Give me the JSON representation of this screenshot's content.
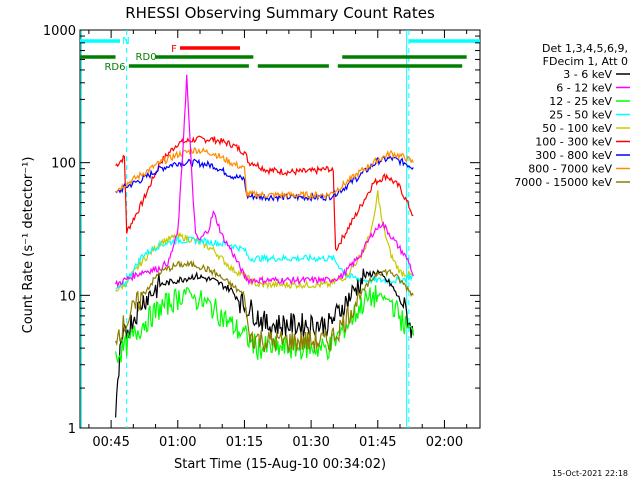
{
  "chart_data": {
    "type": "line",
    "title": "RHESSI Observing Summary Count Rates",
    "xlabel": "Start Time (15-Aug-10 00:34:02)",
    "ylabel": "Count Rate (s⁻¹ detector⁻¹)",
    "y_scale": "log",
    "ylim": [
      1,
      1000
    ],
    "xlim": [
      38,
      128
    ],
    "x_ticks": [
      {
        "v": 45,
        "label": "00:45"
      },
      {
        "v": 60,
        "label": "01:00"
      },
      {
        "v": 75,
        "label": "01:15"
      },
      {
        "v": 90,
        "label": "01:30"
      },
      {
        "v": 105,
        "label": "01:45"
      },
      {
        "v": 120,
        "label": "02:00"
      }
    ],
    "y_ticks": [
      {
        "v": 1,
        "label": "1"
      },
      {
        "v": 10,
        "label": "10"
      },
      {
        "v": 100,
        "label": "100"
      },
      {
        "v": 1000,
        "label": "1000"
      }
    ],
    "legend": {
      "placement": "top-right",
      "header": [
        "Det 1,3,4,5,6,9,",
        "FDecim 1, Att 0"
      ],
      "entries": [
        {
          "name": "3 - 6 keV",
          "color": "#000000"
        },
        {
          "name": "6 - 12 keV",
          "color": "#ff00ff"
        },
        {
          "name": "12 - 25 keV",
          "color": "#00ff00"
        },
        {
          "name": "25 - 50 keV",
          "color": "#00ffff"
        },
        {
          "name": "50 - 100 keV",
          "color": "#c8c800"
        },
        {
          "name": "100 - 300 keV",
          "color": "#ff0000"
        },
        {
          "name": "300 - 800 keV",
          "color": "#0000ff"
        },
        {
          "name": "800 - 7000 keV",
          "color": "#ff8c00"
        },
        {
          "name": "7000 - 15000 keV",
          "color": "#8b7d00"
        }
      ]
    },
    "night_boundaries": [
      {
        "start": 38,
        "end": 48.5
      },
      {
        "start": 112,
        "end": 128
      }
    ],
    "annotations": [
      {
        "label": "N",
        "color": "#00ffff"
      },
      {
        "label": "F",
        "color": "#ff0000"
      },
      {
        "label": "RD0",
        "color": "#008000"
      },
      {
        "label": "RD6",
        "color": "#008000"
      }
    ],
    "bars": {
      "N": [
        {
          "start": 38,
          "end": 47
        },
        {
          "start": 112,
          "end": 128
        }
      ],
      "F": [
        {
          "start": 60.5,
          "end": 74
        }
      ],
      "RD0": [
        {
          "start": 38,
          "end": 46
        },
        {
          "start": 55,
          "end": 77
        },
        {
          "start": 97,
          "end": 125
        }
      ],
      "RD6": [
        {
          "start": 49,
          "end": 76
        },
        {
          "start": 78,
          "end": 94
        },
        {
          "start": 96,
          "end": 124
        }
      ]
    },
    "series": [
      {
        "name": "100 - 300 keV",
        "color": "#ff0000",
        "points": [
          [
            46,
            95
          ],
          [
            48,
            110
          ],
          [
            48.5,
            30
          ],
          [
            52,
            50
          ],
          [
            56,
            100
          ],
          [
            60,
            140
          ],
          [
            64,
            150
          ],
          [
            68,
            150
          ],
          [
            72,
            138
          ],
          [
            75,
            120
          ],
          [
            76,
            100
          ],
          [
            77,
            100
          ],
          [
            80,
            88
          ],
          [
            85,
            85
          ],
          [
            90,
            86
          ],
          [
            94,
            90
          ],
          [
            95,
            85
          ],
          [
            95.5,
            22
          ],
          [
            100,
            40
          ],
          [
            104,
            70
          ],
          [
            107,
            80
          ],
          [
            110,
            65
          ],
          [
            113,
            40
          ]
        ]
      },
      {
        "name": "300 - 800 keV",
        "color": "#0000ff",
        "points": [
          [
            46,
            58
          ],
          [
            48,
            65
          ],
          [
            52,
            75
          ],
          [
            56,
            90
          ],
          [
            60,
            100
          ],
          [
            64,
            100
          ],
          [
            68,
            95
          ],
          [
            72,
            80
          ],
          [
            75,
            75
          ],
          [
            75.5,
            56
          ],
          [
            80,
            55
          ],
          [
            90,
            55
          ],
          [
            94,
            55
          ],
          [
            97,
            63
          ],
          [
            101,
            80
          ],
          [
            105,
            103
          ],
          [
            108,
            108
          ],
          [
            111,
            100
          ],
          [
            113,
            92
          ]
        ]
      },
      {
        "name": "800 - 7000 keV",
        "color": "#ff8c00",
        "points": [
          [
            46,
            62
          ],
          [
            48,
            68
          ],
          [
            52,
            82
          ],
          [
            56,
            100
          ],
          [
            60,
            115
          ],
          [
            64,
            125
          ],
          [
            68,
            118
          ],
          [
            72,
            100
          ],
          [
            75,
            90
          ],
          [
            75.5,
            58
          ],
          [
            80,
            57
          ],
          [
            90,
            57
          ],
          [
            94,
            57
          ],
          [
            97,
            67
          ],
          [
            101,
            85
          ],
          [
            105,
            105
          ],
          [
            108,
            118
          ],
          [
            111,
            110
          ],
          [
            113,
            100
          ]
        ]
      },
      {
        "name": "50 - 100 keV",
        "color": "#c8c800",
        "points": [
          [
            46,
            11
          ],
          [
            48,
            12
          ],
          [
            52,
            18
          ],
          [
            56,
            25
          ],
          [
            60,
            28
          ],
          [
            64,
            26
          ],
          [
            68,
            22
          ],
          [
            72,
            16
          ],
          [
            75,
            14
          ],
          [
            78,
            12
          ],
          [
            85,
            12
          ],
          [
            90,
            12
          ],
          [
            94,
            12
          ],
          [
            98,
            14
          ],
          [
            102,
            22
          ],
          [
            104,
            35
          ],
          [
            105,
            60
          ],
          [
            106,
            35
          ],
          [
            108,
            20
          ],
          [
            110,
            15
          ],
          [
            113,
            14
          ]
        ]
      },
      {
        "name": "25 - 50 keV",
        "color": "#00ffff",
        "points": [
          [
            46,
            11
          ],
          [
            48,
            12
          ],
          [
            52,
            20
          ],
          [
            56,
            24
          ],
          [
            60,
            26
          ],
          [
            64,
            26
          ],
          [
            68,
            25
          ],
          [
            72,
            24
          ],
          [
            75,
            22
          ],
          [
            76,
            19
          ],
          [
            85,
            19
          ],
          [
            94,
            19
          ],
          [
            95,
            19
          ],
          [
            98,
            14
          ],
          [
            102,
            13
          ],
          [
            106,
            13
          ],
          [
            110,
            13
          ],
          [
            113,
            14
          ]
        ]
      },
      {
        "name": "6 - 12 keV",
        "color": "#ff00ff",
        "points": [
          [
            46,
            12
          ],
          [
            48,
            13
          ],
          [
            52,
            15
          ],
          [
            56,
            16
          ],
          [
            58,
            18
          ],
          [
            60,
            30
          ],
          [
            61,
            100
          ],
          [
            62,
            450
          ],
          [
            63,
            100
          ],
          [
            64,
            28
          ],
          [
            65,
            26
          ],
          [
            67,
            32
          ],
          [
            68,
            42
          ],
          [
            69,
            35
          ],
          [
            70,
            28
          ],
          [
            72,
            22
          ],
          [
            75,
            14
          ],
          [
            76,
            13
          ],
          [
            85,
            13
          ],
          [
            94,
            13
          ],
          [
            97,
            14
          ],
          [
            101,
            20
          ],
          [
            104,
            30
          ],
          [
            106,
            35
          ],
          [
            109,
            25
          ],
          [
            112,
            18
          ],
          [
            113,
            14
          ]
        ]
      },
      {
        "name": "3 - 6 keV",
        "color": "#000000",
        "points": [
          [
            46,
            1.2
          ],
          [
            46.5,
            2
          ],
          [
            47,
            3.5
          ],
          [
            48,
            5
          ],
          [
            52,
            9
          ],
          [
            56,
            12
          ],
          [
            60,
            13
          ],
          [
            64,
            14
          ],
          [
            68,
            13
          ],
          [
            72,
            11
          ],
          [
            74,
            9
          ],
          [
            76,
            8
          ],
          [
            80,
            6
          ],
          [
            90,
            6
          ],
          [
            94,
            6
          ],
          [
            98,
            9
          ],
          [
            102,
            14
          ],
          [
            105,
            15
          ],
          [
            108,
            12
          ],
          [
            111,
            8
          ],
          [
            113,
            5
          ]
        ]
      },
      {
        "name": "12 - 25 keV",
        "color": "#00ff00",
        "points": [
          [
            46,
            3.5
          ],
          [
            48,
            4
          ],
          [
            52,
            6
          ],
          [
            56,
            8
          ],
          [
            60,
            9.5
          ],
          [
            62,
            11
          ],
          [
            64,
            9.5
          ],
          [
            68,
            8
          ],
          [
            72,
            6
          ],
          [
            75,
            5
          ],
          [
            78,
            4
          ],
          [
            85,
            4
          ],
          [
            90,
            4
          ],
          [
            94,
            4
          ],
          [
            98,
            6
          ],
          [
            102,
            9
          ],
          [
            105,
            10
          ],
          [
            108,
            9
          ],
          [
            111,
            6
          ],
          [
            113,
            5
          ]
        ]
      },
      {
        "name": "7000 - 15000 keV",
        "color": "#8b7d00",
        "points": [
          [
            46,
            5
          ],
          [
            48,
            6
          ],
          [
            52,
            10
          ],
          [
            56,
            15
          ],
          [
            60,
            17
          ],
          [
            64,
            17
          ],
          [
            68,
            15
          ],
          [
            72,
            12
          ],
          [
            75,
            10
          ],
          [
            76,
            5
          ],
          [
            80,
            4.5
          ],
          [
            90,
            4.5
          ],
          [
            94,
            4.5
          ],
          [
            97,
            6
          ],
          [
            101,
            10
          ],
          [
            105,
            15
          ],
          [
            108,
            15
          ],
          [
            111,
            12
          ],
          [
            113,
            10
          ]
        ]
      }
    ]
  },
  "footer": {
    "timestamp": "15-Oct-2021 22:18"
  }
}
